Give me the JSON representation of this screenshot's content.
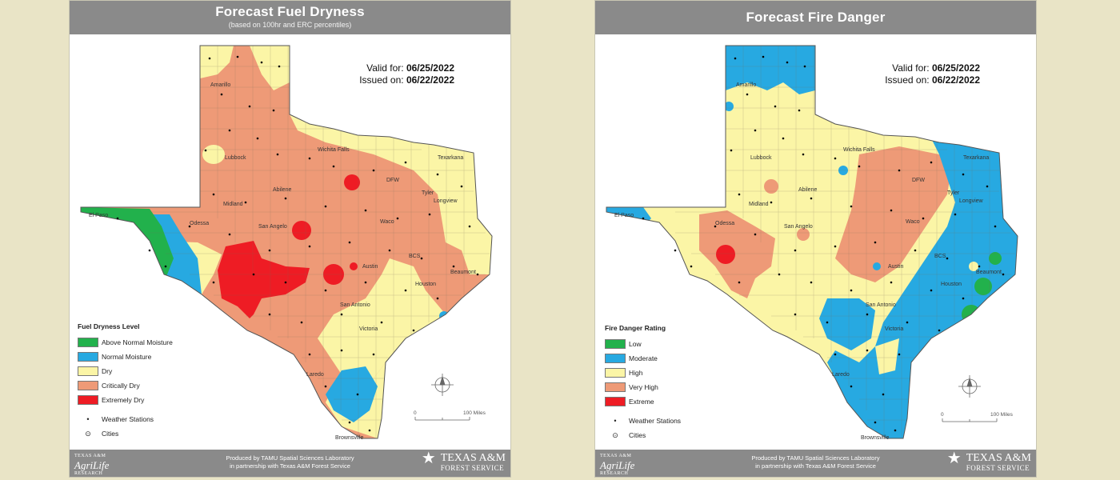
{
  "panels": [
    {
      "title": "Forecast Fuel Dryness",
      "subtitle": "(based on 100hr and ERC percentiles)",
      "valid_label": "Valid for:",
      "valid_date": "06/25/2022",
      "issued_label": "Issued on:",
      "issued_date": "06/22/2022",
      "legend_title": "Fuel Dryness Level",
      "legend": [
        {
          "label": "Above Normal Moisture",
          "color": "#22b14c"
        },
        {
          "label": "Normal Moisture",
          "color": "#27a9e1"
        },
        {
          "label": "Dry",
          "color": "#fbf5a6"
        },
        {
          "label": "Critically Dry",
          "color": "#ee9a77"
        },
        {
          "label": "Extremely Dry",
          "color": "#ee1c24"
        }
      ],
      "symbols": [
        {
          "label": "Weather Stations",
          "glyph": "•"
        },
        {
          "label": "Cities",
          "glyph": "⊙"
        }
      ],
      "cities": [
        "Amarillo",
        "Lubbock",
        "Wichita Falls",
        "Texarkana",
        "DFW",
        "Abilene",
        "Tyler",
        "Longview",
        "Midland",
        "Odessa",
        "El Paso",
        "San Angelo",
        "Waco",
        "BCS",
        "Austin",
        "Beaumont",
        "Houston",
        "San Antonio",
        "Victoria",
        "Laredo",
        "Brownsville"
      ],
      "scale_start": "0",
      "scale_end": "100 Miles",
      "credit_line1": "Produced by TAMU Spatial Sciences Laboratory",
      "credit_line2": "in partnership with Texas A&M Forest Service",
      "logo_left": "AgriLife",
      "logo_left_top": "TEXAS A&M",
      "logo_left_bottom": "RESEARCH",
      "logo_right": "TEXAS A&M",
      "logo_right_sub": "FOREST SERVICE"
    },
    {
      "title": "Forecast Fire Danger",
      "valid_label": "Valid for:",
      "valid_date": "06/25/2022",
      "issued_label": "Issued on:",
      "issued_date": "06/22/2022",
      "legend_title": "Fire Danger Rating",
      "legend": [
        {
          "label": "Low",
          "color": "#22b14c"
        },
        {
          "label": "Moderate",
          "color": "#27a9e1"
        },
        {
          "label": "High",
          "color": "#fbf5a6"
        },
        {
          "label": "Very High",
          "color": "#ee9a77"
        },
        {
          "label": "Extreme",
          "color": "#ee1c24"
        }
      ],
      "symbols": [
        {
          "label": "Weather Stations",
          "glyph": "•"
        },
        {
          "label": "Cities",
          "glyph": "⊙"
        }
      ],
      "cities": [
        "Amarillo",
        "Lubbock",
        "Wichita Falls",
        "Texarkana",
        "DFW",
        "Abilene",
        "Tyler",
        "Longview",
        "Midland",
        "Odessa",
        "El Paso",
        "San Angelo",
        "Waco",
        "BCS",
        "Austin",
        "Beaumont",
        "Houston",
        "San Antonio",
        "Victoria",
        "Laredo",
        "Brownsville"
      ],
      "scale_start": "0",
      "scale_end": "100 Miles",
      "credit_line1": "Produced by TAMU Spatial Sciences Laboratory",
      "credit_line2": "in partnership with Texas A&M Forest Service",
      "logo_left": "AgriLife",
      "logo_left_top": "TEXAS A&M",
      "logo_left_bottom": "RESEARCH",
      "logo_right": "TEXAS A&M",
      "logo_right_sub": "FOREST SERVICE"
    }
  ]
}
